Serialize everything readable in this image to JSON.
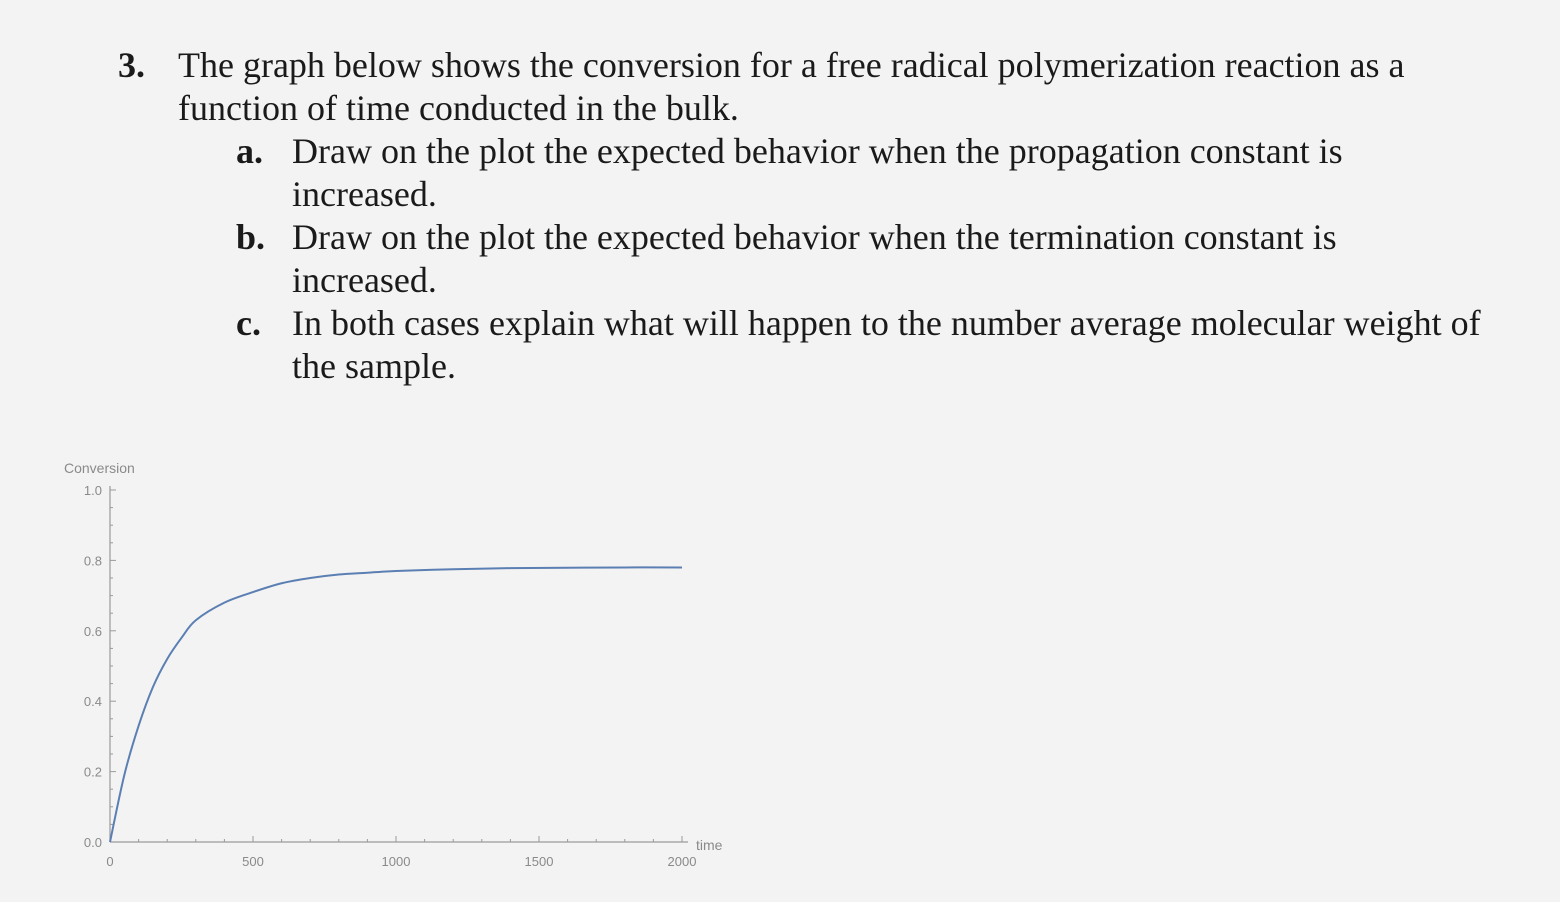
{
  "question": {
    "number": "3.",
    "text": "The graph below shows the conversion for a free radical polymerization reaction as a function of time conducted in the bulk.",
    "parts": [
      {
        "letter": "a.",
        "text": "Draw on the plot the expected behavior when the propagation constant is increased."
      },
      {
        "letter": "b.",
        "text": "Draw on the plot the expected behavior when the termination constant is increased."
      },
      {
        "letter": "c.",
        "text": "In both cases explain what will happen to the number average molecular weight of the sample."
      }
    ]
  },
  "chart_data": {
    "type": "line",
    "title": "",
    "xlabel": "time",
    "ylabel": "Conversion",
    "xlim": [
      0,
      2000
    ],
    "ylim": [
      0,
      1.0
    ],
    "x_ticks": [
      "0",
      "500",
      "1000",
      "1500",
      "2000"
    ],
    "y_ticks": [
      "0.0",
      "0.2",
      "0.4",
      "0.6",
      "0.8",
      "1.0"
    ],
    "grid": false,
    "legend": "none",
    "series": [
      {
        "color": "#5b7fb3",
        "x": [
          0,
          50,
          100,
          150,
          200,
          250,
          300,
          400,
          500,
          600,
          700,
          800,
          900,
          1000,
          1200,
          1400,
          1600,
          1800,
          2000
        ],
        "y": [
          0,
          0.19,
          0.33,
          0.44,
          0.52,
          0.58,
          0.63,
          0.68,
          0.71,
          0.735,
          0.75,
          0.76,
          0.765,
          0.77,
          0.775,
          0.778,
          0.779,
          0.78,
          0.78
        ]
      }
    ]
  }
}
